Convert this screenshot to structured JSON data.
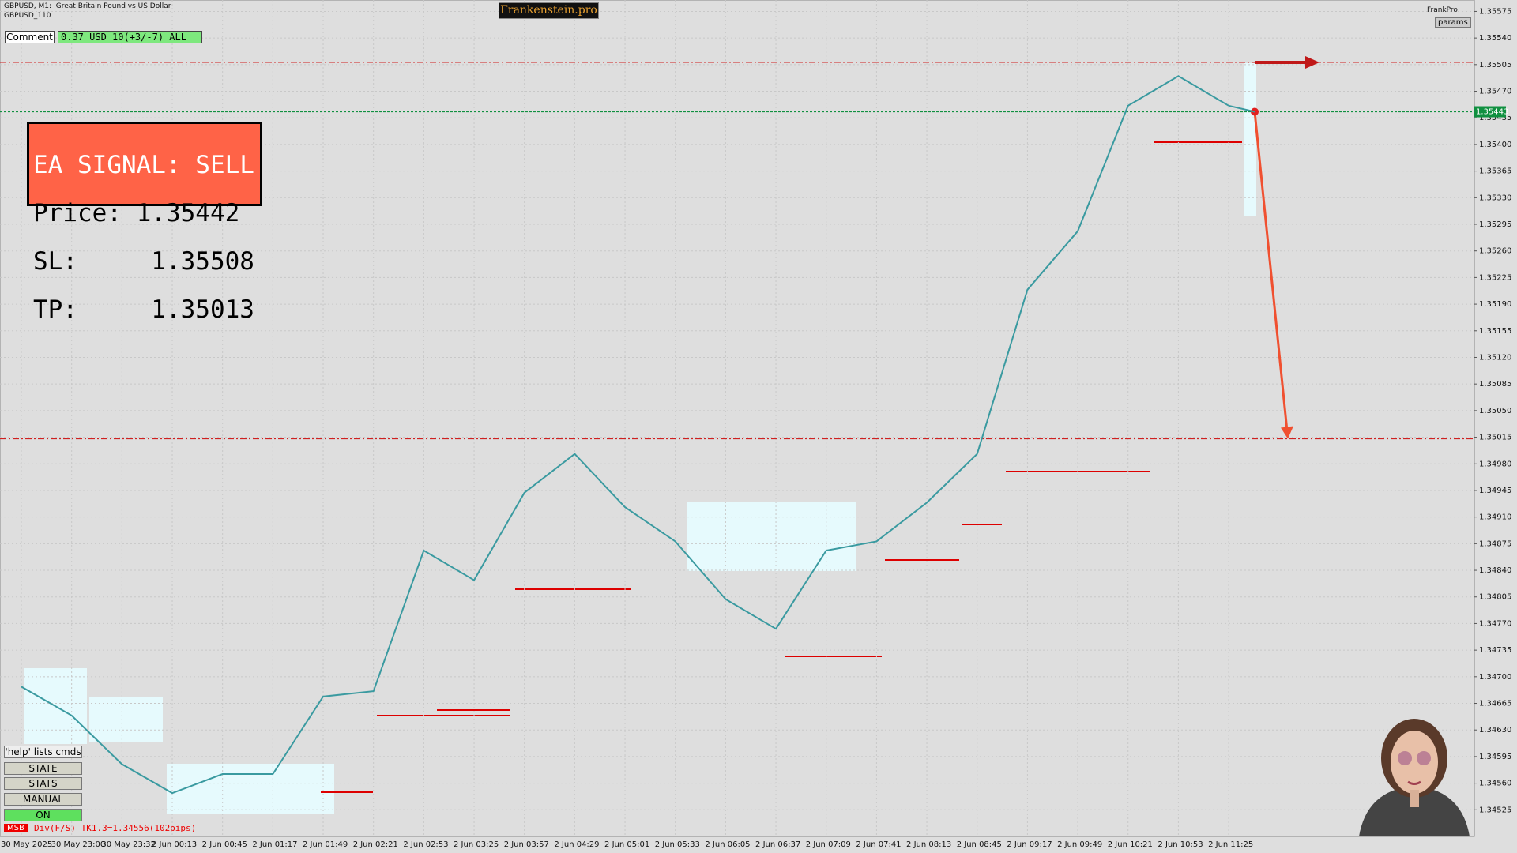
{
  "header": {
    "symbol": "GBPUSD, M1:  Great Britain Pound vs US Dollar",
    "sub": "GBPUSD_110",
    "brand": "Frankenstein.pro",
    "user": "FrankPro",
    "params": "params"
  },
  "comment": {
    "label": "Comment",
    "value": "0.37 USD 10(+3/-7) ALL"
  },
  "signal": {
    "title": "EA SIGNAL: SELL",
    "price": "Price: 1.35442",
    "sl": "SL:     1.35508",
    "tp": "TP:     1.35013"
  },
  "buttons": [
    "'help' lists cmds",
    "STATE",
    "STATS",
    "MANUAL",
    "ON"
  ],
  "status": {
    "tag": "MSB",
    "text": "Div(F/S) TK1.3=1.34556(102pips)"
  },
  "chart_data": {
    "type": "line",
    "color": "#3a9aa0",
    "categories": [
      "30 May 2025",
      "30 May 23:00",
      "30 May 23:32",
      "2 Jun 00:13",
      "2 Jun 00:45",
      "2 Jun 01:17",
      "2 Jun 01:49",
      "2 Jun 02:21",
      "2 Jun 02:53",
      "2 Jun 03:25",
      "2 Jun 03:57",
      "2 Jun 04:29",
      "2 Jun 05:01",
      "2 Jun 05:33",
      "2 Jun 06:05",
      "2 Jun 06:37",
      "2 Jun 07:09",
      "2 Jun 07:41",
      "2 Jun 08:13",
      "2 Jun 08:45",
      "2 Jun 09:17",
      "2 Jun 09:49",
      "2 Jun 10:21",
      "2 Jun 10:53",
      "2 Jun 11:25"
    ],
    "values": [
      1.34687,
      1.34649,
      1.34585,
      1.34547,
      1.34572,
      1.34572,
      1.34674,
      1.34681,
      1.34866,
      1.34827,
      1.34942,
      1.34993,
      1.34923,
      1.34878,
      1.34802,
      1.34763,
      1.34866,
      1.34878,
      1.34929,
      1.34993,
      1.35209,
      1.35286,
      1.35451,
      1.3549,
      1.35451
    ],
    "current_price": 1.35443,
    "sl": 1.35508,
    "tp": 1.35013,
    "ylim": [
      1.3449,
      1.3559
    ],
    "yticks": [
      1.34525,
      {
        "value": 1.3456,
        "label": "1.34560"
      },
      1.34595,
      {
        "value": 1.3463,
        "label": "1.34630"
      },
      1.34665,
      {
        "value": 1.347,
        "label": "1.34700"
      },
      1.34735,
      {
        "value": 1.3477,
        "label": "1.34770"
      },
      1.34805,
      {
        "value": 1.3484,
        "label": "1.34840"
      },
      1.34875,
      {
        "value": 1.3491,
        "label": "1.34910"
      },
      1.34945,
      {
        "value": 1.3498,
        "label": "1.34980"
      },
      1.35015,
      {
        "value": 1.3505,
        "label": "1.35050"
      },
      1.35085,
      {
        "value": 1.3512,
        "label": "1.35120"
      },
      1.35155,
      {
        "value": 1.3519,
        "label": "1.35190"
      },
      1.35225,
      {
        "value": 1.3526,
        "label": "1.35260"
      },
      1.35295,
      {
        "value": 1.3533,
        "label": "1.35330"
      },
      1.35365,
      {
        "value": 1.354,
        "label": "1.35400"
      },
      1.35435,
      {
        "value": 1.3547,
        "label": "1.35470"
      },
      1.35505,
      {
        "value": 1.3554,
        "label": "1.35540"
      },
      1.35575
    ],
    "grid": true
  }
}
